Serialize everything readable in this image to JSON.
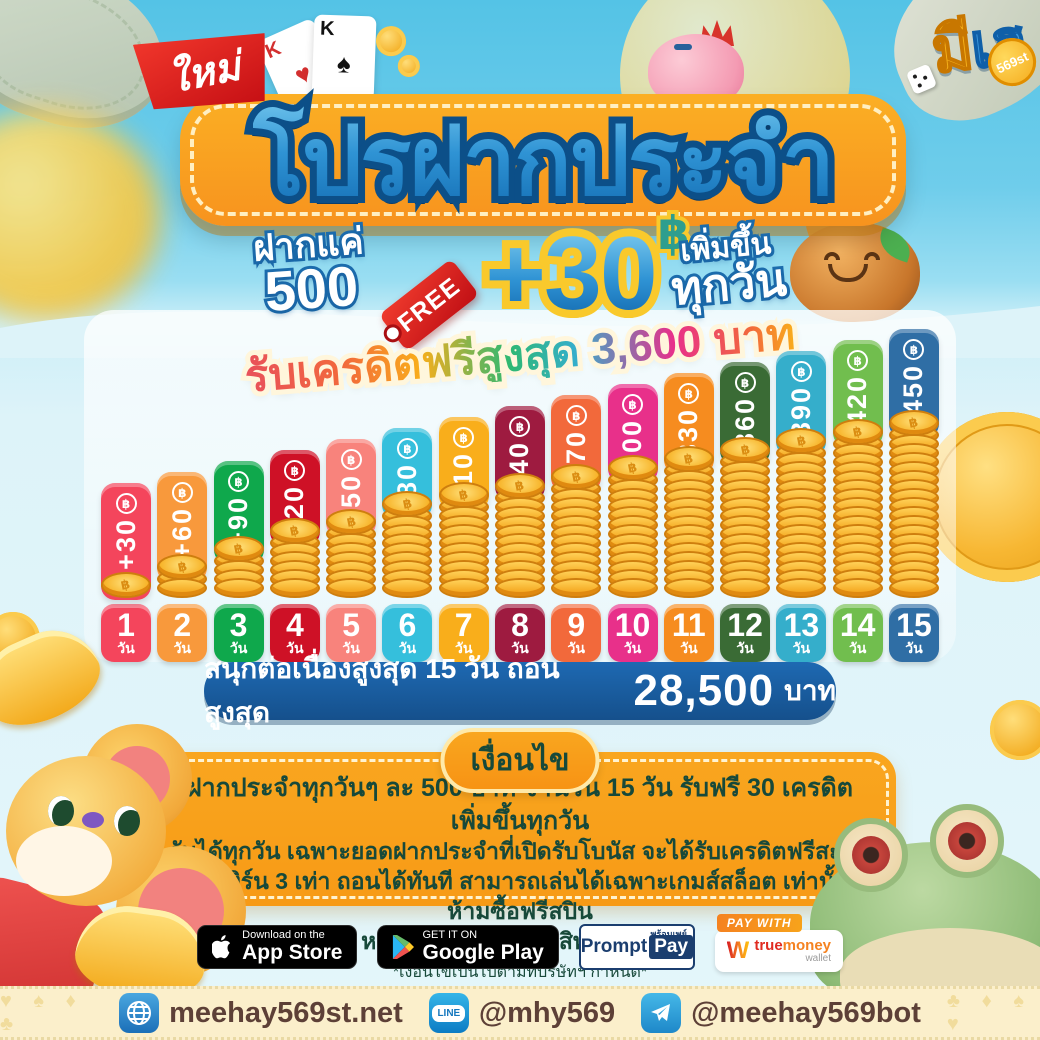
{
  "ribbon_new": "ใหม่",
  "logo": {
    "part1": "มี",
    "part2": "เฮ",
    "badge": "569st"
  },
  "title": "โปรฝากประจำ",
  "offer": {
    "deposit_line1": "ฝากแค่",
    "deposit_line2": "500",
    "free_tag": "FREE",
    "bonus_amount": "+30",
    "bonus_currency": "฿",
    "daily_line1": "เพิ่มขึ้น",
    "daily_line2": "ทุกวัน"
  },
  "chart_data": {
    "type": "bar",
    "title": "รับเครดิตฟรีสูงสุด 3,600 บาท",
    "categories": [
      "1",
      "2",
      "3",
      "4",
      "5",
      "6",
      "7",
      "8",
      "9",
      "10",
      "11",
      "12",
      "13",
      "14",
      "15"
    ],
    "category_unit": "วัน",
    "values": [
      30,
      60,
      90,
      120,
      150,
      180,
      210,
      240,
      270,
      300,
      330,
      360,
      390,
      420,
      450
    ],
    "value_labels": [
      "+30",
      "+60",
      "+90",
      "+120",
      "+150",
      "+180",
      "+210",
      "+240",
      "+270",
      "+300",
      "+330",
      "+360",
      "+390",
      "+420",
      "+450"
    ],
    "currency_symbol": "฿",
    "bar_colors": [
      "#F4455C",
      "#F8993C",
      "#0FA84C",
      "#CE1126",
      "#F8837C",
      "#35BFDC",
      "#F9AE1B",
      "#9E1B40",
      "#F2693B",
      "#E8308A",
      "#F68C1F",
      "#3A6B35",
      "#35AECB",
      "#71BE4E",
      "#2F6EA5"
    ],
    "coin_counts": [
      1,
      3,
      5,
      7,
      8,
      10,
      11,
      12,
      13,
      14,
      15,
      16,
      17,
      18,
      19
    ],
    "max_total_label": "3,600",
    "ylim": [
      0,
      450
    ],
    "xlabel": "วัน",
    "ylabel": ""
  },
  "summary": {
    "prefix": "สนุกต่อเนื่องสูงสุด 15 วัน ถอนสูงสุด",
    "amount": "28,500",
    "suffix": "บาท"
  },
  "terms": {
    "title": "เงื่อนไข",
    "line1": "ฝากประจำทุกวันๆ ละ 500 บาท จำนวน 15 วัน รับฟรี 30 เครดิตเพิ่มขึ้นทุกวัน",
    "line2": "รับได้ทุกวัน เฉพาะยอดฝากประจำที่เปิดรับโบนัส จะได้รับเครดิตฟรีสะสม",
    "line3": "ทำเทิร์น 3 เท่า ถอนได้ทันที สามารถเล่นได้เฉพาะเกมส์สล็อต เท่านั้น ห้ามซื้อฟรีสปิน",
    "line4": "หากตรวจสอบพบตัดสิทธิ์ทุกกรณี",
    "footnote": "*เงื่อนไขเป็นไปตามที่บริษัทฯ กำหนด*"
  },
  "store_badges": {
    "appstore": {
      "top": "Download on the",
      "bottom": "App Store"
    },
    "googleplay": {
      "top": "GET IT ON",
      "bottom": "Google Play"
    },
    "promptpay": {
      "thai": "พร้อมเพย์",
      "part1": "Prompt",
      "part2": "Pay"
    },
    "truemoney": {
      "paywith": "PAY WITH",
      "w": "W",
      "part1": "true",
      "part2": "money",
      "sub": "wallet"
    }
  },
  "footer": {
    "website": "meehay569st.net",
    "line_id": "@mhy569",
    "telegram": "@meehay569bot",
    "line_icon_label": "LINE",
    "suits_left": "♥ ♠ ♦ ♣",
    "suits_right": "♣ ♦ ♠ ♥"
  },
  "icons": {
    "footer": [
      "globe-icon",
      "line-icon",
      "telegram-paper-plane-icon"
    ],
    "badges": [
      "apple-icon",
      "google-play-triangle-icon",
      "truemoney-w-icon"
    ],
    "decor": [
      "banknote",
      "gold-coin",
      "playing-cards",
      "piggy-bank",
      "hamster",
      "mouse-mascot",
      "frog-mascot",
      "dice"
    ]
  },
  "colors": {
    "sky_top": "#54C3E6",
    "panel": "#FFFFFF",
    "accent_orange": "#F9A01B",
    "deep_blue": "#1A5DA6",
    "terms_green": "#17493A",
    "footer_cream": "#FBEFCB",
    "coin_gold": "#F6AE1F"
  }
}
